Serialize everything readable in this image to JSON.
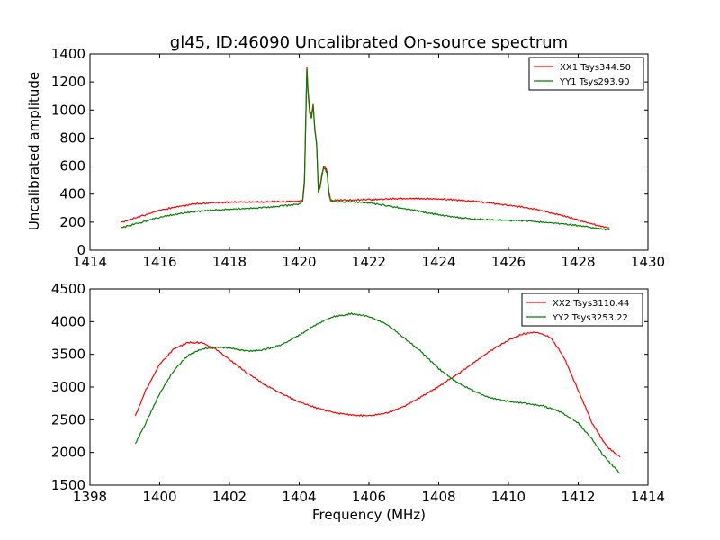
{
  "chart_data": [
    {
      "type": "line",
      "title": "gl45, ID:46090 Uncalibrated On-source spectrum",
      "xlabel": "",
      "ylabel": "Uncalibrated amplitude",
      "xlim": [
        1414,
        1430
      ],
      "ylim": [
        0,
        1400
      ],
      "xticks": [
        "1414",
        "1416",
        "1418",
        "1420",
        "1422",
        "1424",
        "1426",
        "1428",
        "1430"
      ],
      "yticks": [
        "0",
        "200",
        "400",
        "600",
        "800",
        "1000",
        "1200",
        "1400"
      ],
      "grid": false,
      "legend": "top-right",
      "series": [
        {
          "name": "XX1 Tsys344.50",
          "color": "#ff0000",
          "x": [
            1414.9,
            1415.5,
            1416.0,
            1416.5,
            1417.0,
            1417.5,
            1418.0,
            1418.5,
            1419.0,
            1419.5,
            1420.0,
            1420.1,
            1420.15,
            1420.22,
            1420.25,
            1420.3,
            1420.35,
            1420.4,
            1420.45,
            1420.5,
            1420.55,
            1420.6,
            1420.65,
            1420.7,
            1420.75,
            1420.8,
            1420.85,
            1420.9,
            1421.0,
            1421.5,
            1422.0,
            1422.5,
            1423.0,
            1423.5,
            1424.0,
            1424.5,
            1425.0,
            1425.5,
            1426.0,
            1426.5,
            1427.0,
            1427.5,
            1428.0,
            1428.5,
            1428.9
          ],
          "y": [
            200,
            245,
            285,
            310,
            330,
            338,
            342,
            344,
            345,
            347,
            350,
            360,
            500,
            1310,
            1150,
            1000,
            960,
            1040,
            860,
            760,
            420,
            460,
            540,
            600,
            590,
            560,
            420,
            360,
            355,
            358,
            360,
            365,
            368,
            368,
            365,
            358,
            348,
            335,
            320,
            305,
            280,
            250,
            215,
            180,
            160
          ]
        },
        {
          "name": "YY1 Tsys293.90",
          "color": "#008000",
          "x": [
            1414.9,
            1415.5,
            1416.0,
            1416.5,
            1417.0,
            1417.5,
            1418.0,
            1418.5,
            1419.0,
            1419.5,
            1420.0,
            1420.1,
            1420.15,
            1420.22,
            1420.25,
            1420.3,
            1420.35,
            1420.4,
            1420.45,
            1420.5,
            1420.55,
            1420.6,
            1420.65,
            1420.7,
            1420.75,
            1420.8,
            1420.85,
            1420.9,
            1421.0,
            1421.5,
            1422.0,
            1422.5,
            1423.0,
            1423.5,
            1424.0,
            1424.5,
            1425.0,
            1425.5,
            1426.0,
            1426.5,
            1427.0,
            1427.5,
            1428.0,
            1428.5,
            1428.9
          ],
          "y": [
            160,
            200,
            235,
            258,
            275,
            285,
            292,
            298,
            305,
            315,
            330,
            345,
            480,
            1290,
            1130,
            980,
            940,
            1030,
            850,
            750,
            410,
            450,
            525,
            585,
            575,
            545,
            405,
            350,
            348,
            345,
            338,
            318,
            298,
            275,
            252,
            235,
            222,
            216,
            212,
            208,
            200,
            190,
            175,
            158,
            145
          ]
        }
      ]
    },
    {
      "type": "line",
      "title": "",
      "xlabel": "Frequency (MHz)",
      "ylabel": "",
      "xlim": [
        1398,
        1414
      ],
      "ylim": [
        1500,
        4500
      ],
      "xticks": [
        "1398",
        "1400",
        "1402",
        "1404",
        "1406",
        "1408",
        "1410",
        "1412",
        "1414"
      ],
      "yticks": [
        "1500",
        "2000",
        "2500",
        "3000",
        "3500",
        "4000",
        "4500"
      ],
      "grid": false,
      "legend": "top-right",
      "series": [
        {
          "name": "XX2 Tsys3110.44",
          "color": "#ff0000",
          "x": [
            1399.3,
            1399.6,
            1400.0,
            1400.4,
            1400.8,
            1401.2,
            1401.6,
            1402.0,
            1402.5,
            1403.0,
            1403.5,
            1404.0,
            1404.5,
            1405.0,
            1405.5,
            1406.0,
            1406.5,
            1407.0,
            1407.5,
            1408.0,
            1408.5,
            1409.0,
            1409.5,
            1410.0,
            1410.4,
            1410.8,
            1411.2,
            1411.6,
            1412.0,
            1412.4,
            1412.8,
            1413.2
          ],
          "y": [
            2560,
            2950,
            3350,
            3580,
            3680,
            3680,
            3580,
            3420,
            3220,
            3040,
            2900,
            2770,
            2680,
            2610,
            2570,
            2560,
            2600,
            2700,
            2850,
            3010,
            3180,
            3370,
            3560,
            3720,
            3810,
            3840,
            3760,
            3450,
            2950,
            2450,
            2100,
            1930
          ]
        },
        {
          "name": "YY2 Tsys3253.22",
          "color": "#008000",
          "x": [
            1399.3,
            1399.6,
            1400.0,
            1400.4,
            1400.8,
            1401.2,
            1401.6,
            1402.0,
            1402.5,
            1403.0,
            1403.5,
            1404.0,
            1404.5,
            1405.0,
            1405.5,
            1406.0,
            1406.5,
            1407.0,
            1407.5,
            1408.0,
            1408.5,
            1409.0,
            1409.5,
            1410.0,
            1410.5,
            1411.0,
            1411.5,
            1412.0,
            1412.4,
            1412.8,
            1413.2
          ],
          "y": [
            2130,
            2450,
            2900,
            3250,
            3480,
            3580,
            3610,
            3600,
            3550,
            3570,
            3650,
            3790,
            3960,
            4080,
            4120,
            4080,
            3960,
            3760,
            3540,
            3280,
            3080,
            2940,
            2830,
            2780,
            2750,
            2710,
            2620,
            2450,
            2200,
            1900,
            1680
          ]
        }
      ]
    }
  ]
}
